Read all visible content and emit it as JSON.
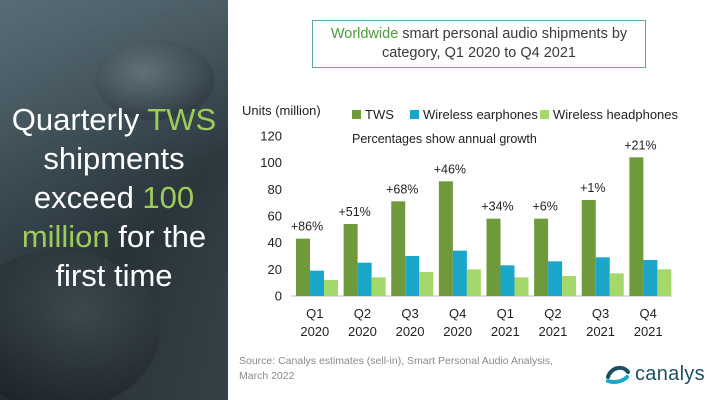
{
  "headline": {
    "part1": "Quarterly ",
    "accent1": "TWS",
    "part2": " shipments exceed ",
    "accent2": "100 million",
    "part3": " for the first time"
  },
  "title": {
    "accent": "Worldwide",
    "rest1": " smart personal audio shipments by",
    "line2": "category, Q1 2020 to Q4 2021"
  },
  "source": "Source: Canalys estimates (sell-in), Smart Personal Audio Analysis, March 2022",
  "logo_text": "canalys",
  "colors": {
    "tws": "#6e9a3b",
    "earphones": "#1aa6c9",
    "headphones": "#a5d86a",
    "accent_green": "#9ccc5a",
    "title_border": "#58a9a5"
  },
  "chart_data": {
    "type": "bar",
    "ylabel": "Units (million)",
    "annotation": "Percentages show annual growth",
    "ylim": [
      0,
      120
    ],
    "yticks": [
      0,
      20,
      40,
      60,
      80,
      100,
      120
    ],
    "categories": [
      [
        "Q1",
        "2020"
      ],
      [
        "Q2",
        "2020"
      ],
      [
        "Q3",
        "2020"
      ],
      [
        "Q4",
        "2020"
      ],
      [
        "Q1",
        "2021"
      ],
      [
        "Q2",
        "2021"
      ],
      [
        "Q3",
        "2021"
      ],
      [
        "Q4",
        "2021"
      ]
    ],
    "series": [
      {
        "name": "TWS",
        "color": "#6e9a3b",
        "values": [
          43,
          54,
          71,
          86,
          58,
          58,
          72,
          104
        ]
      },
      {
        "name": "Wireless earphones",
        "color": "#1aa6c9",
        "values": [
          19,
          25,
          30,
          34,
          23,
          26,
          29,
          27
        ]
      },
      {
        "name": "Wireless headphones",
        "color": "#a5d86a",
        "values": [
          12,
          14,
          18,
          20,
          14,
          15,
          17,
          20
        ]
      }
    ],
    "growth_labels": [
      "+86%",
      "+51%",
      "+68%",
      "+46%",
      "+34%",
      "+6%",
      "+1%",
      "+21%"
    ],
    "grid": false,
    "legend": "top"
  }
}
